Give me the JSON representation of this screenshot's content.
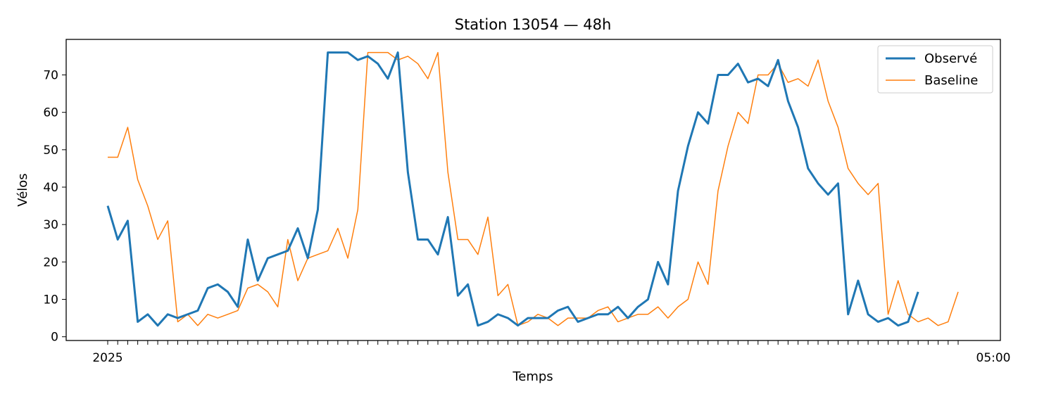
{
  "chart_data": {
    "type": "line",
    "title": "Station 13054 — 48h",
    "xlabel": "Temps",
    "ylabel": "Vélos",
    "ylim": [
      -1,
      79.5
    ],
    "yticks": [
      0,
      10,
      20,
      30,
      40,
      50,
      60,
      70
    ],
    "x_tick_count": 86,
    "x_tick_labels_note": "dense overlapping timestamp labels",
    "x_first_label_fragment": "2025",
    "x_last_label_fragment": "05:00",
    "legend_position": "top-right",
    "grid": false,
    "series": [
      {
        "name": "Observé",
        "color": "#1f77b4",
        "start_index": 0,
        "values": [
          35,
          26,
          31,
          4,
          6,
          3,
          6,
          5,
          6,
          7,
          13,
          14,
          12,
          8,
          26,
          15,
          21,
          22,
          23,
          29,
          21,
          34,
          76,
          76,
          76,
          74,
          75,
          73,
          69,
          76,
          44,
          26,
          26,
          22,
          32,
          11,
          14,
          3,
          4,
          6,
          5,
          3,
          5,
          5,
          5,
          7,
          8,
          4,
          5,
          6,
          6,
          8,
          5,
          8,
          10,
          20,
          14,
          39,
          51,
          60,
          57,
          70,
          70,
          73,
          68,
          69,
          67,
          74,
          63,
          56,
          45,
          41,
          38,
          41,
          6,
          15,
          6,
          4,
          5,
          3,
          4,
          12
        ]
      },
      {
        "name": "Baseline",
        "color": "#ff7f0e",
        "start_index": 0,
        "values": [
          48,
          48,
          56,
          42,
          35,
          26,
          31,
          4,
          6,
          3,
          6,
          5,
          6,
          7,
          13,
          14,
          12,
          8,
          26,
          15,
          21,
          22,
          23,
          29,
          21,
          34,
          76,
          76,
          76,
          74,
          75,
          73,
          69,
          76,
          44,
          26,
          26,
          22,
          32,
          11,
          14,
          3,
          4,
          6,
          5,
          3,
          5,
          5,
          5,
          7,
          8,
          4,
          5,
          6,
          6,
          8,
          5,
          8,
          10,
          20,
          14,
          39,
          51,
          60,
          57,
          70,
          70,
          73,
          68,
          69,
          67,
          74,
          63,
          56,
          45,
          41,
          38,
          41,
          6,
          15,
          6,
          4,
          5,
          3,
          4,
          12
        ]
      }
    ]
  }
}
